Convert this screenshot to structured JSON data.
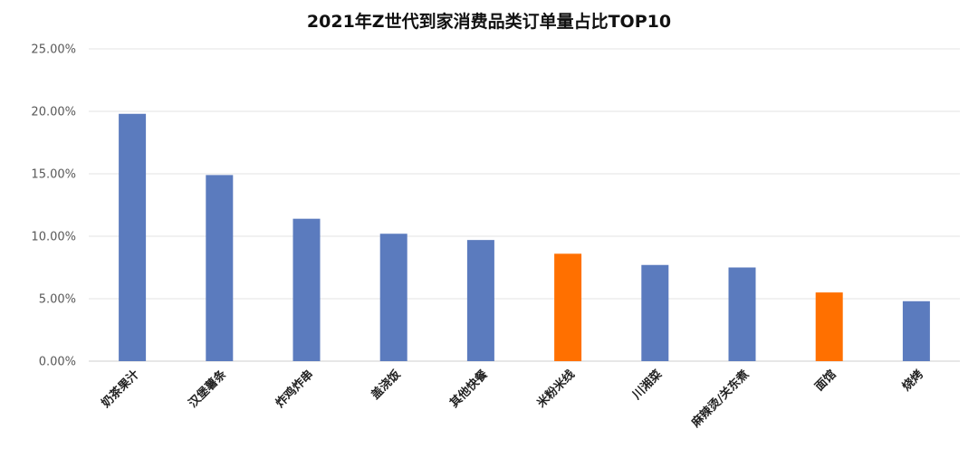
{
  "chart_data": {
    "type": "bar",
    "title": "2021年Z世代到家消费品类订单量占比TOP10",
    "xlabel": "",
    "ylabel": "",
    "categories": [
      "奶茶果汁",
      "汉堡薯条",
      "炸鸡炸串",
      "盖浇饭",
      "其他快餐",
      "米粉米线",
      "川湘菜",
      "麻辣烫/关东煮",
      "面馆",
      "烧烤"
    ],
    "values": [
      19.8,
      14.9,
      11.4,
      10.2,
      9.7,
      8.6,
      7.7,
      7.5,
      5.5,
      4.8
    ],
    "ylim": [
      0,
      25
    ],
    "yticks": [
      "0.00%",
      "5.00%",
      "10.00%",
      "15.00%",
      "20.00%",
      "25.00%"
    ],
    "grid": true,
    "colors": {
      "default": "#5B7BBE",
      "highlight": "#FF7000",
      "highlighted_categories": [
        "米粉米线",
        "面馆"
      ]
    }
  }
}
